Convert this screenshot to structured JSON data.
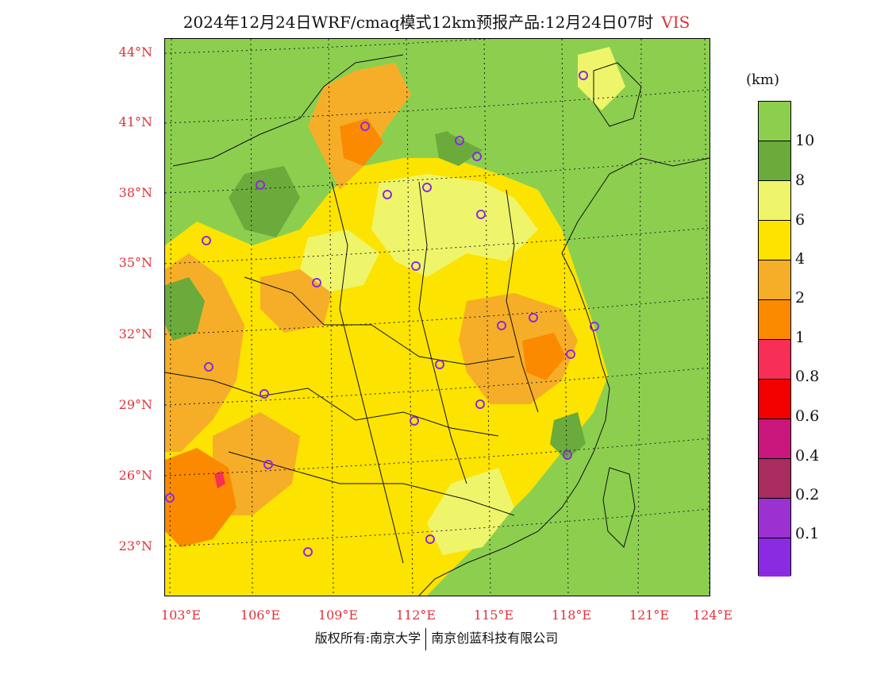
{
  "header": {
    "title": "2024年12月24日WRF/cmaq模式12km预报产品:12月24日07时",
    "variable": "VIS"
  },
  "map": {
    "lat_ticks": [
      "44°N",
      "41°N",
      "38°N",
      "35°N",
      "32°N",
      "29°N",
      "26°N",
      "23°N"
    ],
    "lon_ticks": [
      "103°E",
      "106°E",
      "109°E",
      "112°E",
      "115°E",
      "118°E",
      "121°E",
      "124°E"
    ],
    "station_marker_color": "#8a2be2"
  },
  "colorbar": {
    "unit": "(km)",
    "labels": [
      "10",
      "8",
      "6",
      "4",
      "2",
      "1",
      "0.8",
      "0.6",
      "0.4",
      "0.2",
      "0.1"
    ],
    "colors": [
      "#8ccf4f",
      "#6aab3b",
      "#eef56a",
      "#fce300",
      "#f6ae28",
      "#fc8a00",
      "#f72e56",
      "#f20000",
      "#c8167c",
      "#a82c5e",
      "#9b31d0",
      "#8a2be2"
    ]
  },
  "footer": {
    "left": "版权所有:南京大学",
    "right": "南京创蓝科技有限公司"
  }
}
